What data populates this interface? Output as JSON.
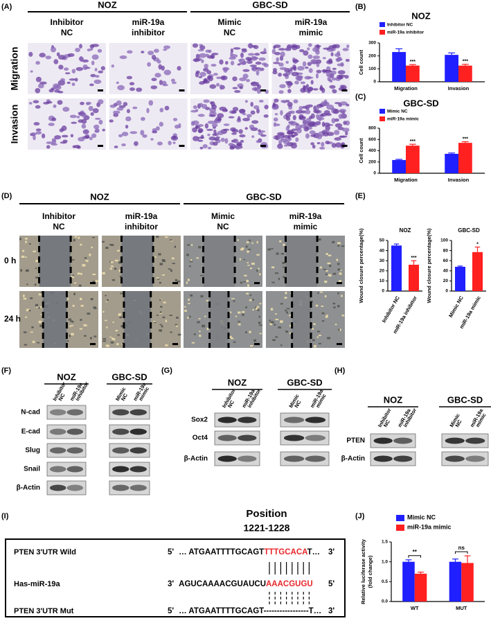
{
  "migration_invasion": {
    "label": "(A)",
    "groups": [
      {
        "name": "NOZ",
        "columns": [
          [
            "Inhibitor",
            "NC"
          ],
          [
            "miR-19a",
            "inhibitor"
          ]
        ]
      },
      {
        "name": "GBC-SD",
        "columns": [
          [
            "Mimic",
            "NC"
          ],
          [
            "miR-19a",
            "mimic"
          ]
        ]
      }
    ],
    "rows": [
      "Migration",
      "Invasion"
    ]
  },
  "wound_healing": {
    "label": "(D)",
    "groups": [
      {
        "name": "NOZ",
        "columns": [
          [
            "Inhibitor",
            "NC"
          ],
          [
            "miR-19a",
            "inhibitor"
          ]
        ]
      },
      {
        "name": "GBC-SD",
        "columns": [
          [
            "Mimic",
            "NC"
          ],
          [
            "miR-19a",
            "mimic"
          ]
        ]
      }
    ],
    "rows": [
      "0 h",
      "24 h"
    ]
  },
  "western_emt": {
    "label": "(F)",
    "groups": [
      {
        "name": "NOZ",
        "lanes": [
          [
            "Inhibitor",
            "NC"
          ],
          [
            "miR-19a",
            "inhibitor"
          ]
        ]
      },
      {
        "name": "GBC-SD",
        "lanes": [
          [
            "Mimic",
            "NC"
          ],
          [
            "miR-19a",
            "mimic"
          ]
        ]
      }
    ],
    "proteins": [
      "N-cad",
      "E-cad",
      "Slug",
      "Snail",
      "β-Actin"
    ]
  },
  "western_stem": {
    "label": "(G)",
    "groups": [
      {
        "name": "NOZ",
        "lanes": [
          [
            "Inhibitor",
            "NC"
          ],
          [
            "miR-19a",
            "inhibitor"
          ]
        ]
      },
      {
        "name": "GBC-SD",
        "lanes": [
          [
            "Mimic",
            "NC"
          ],
          [
            "miR-19a",
            "mimic"
          ]
        ]
      }
    ],
    "proteins": [
      "Sox2",
      "Oct4",
      "β-Actin"
    ]
  },
  "western_pten": {
    "label": "(H)",
    "groups": [
      {
        "name": "NOZ",
        "lanes": [
          [
            "Inhibitor",
            "NC"
          ],
          [
            "miR-19a",
            "inhibitor"
          ]
        ]
      },
      {
        "name": "GBC-SD",
        "lanes": [
          [
            "Mimic",
            "NC"
          ],
          [
            "miR-19a",
            "mimic"
          ]
        ]
      }
    ],
    "proteins": [
      "PTEN",
      "β-Actin"
    ]
  },
  "binding_site": {
    "label": "(I)",
    "position_title": "Position",
    "position_range": "1221-1228",
    "highlight_color": "#e8262a",
    "rows": [
      {
        "name": "PTEN 3'UTR Wild",
        "segments": [
          "5'",
          "… ATGAATTTTGCAGT",
          "TTTGCACA",
          "T…",
          "3'"
        ],
        "highlight": 2
      },
      {
        "name": "Has-miR-19a",
        "segments": [
          "3'",
          "AGUCAAAACGUAUCU",
          "AAACGUGU",
          "5'"
        ],
        "highlight": 2
      },
      {
        "name": "PTEN 3'UTR Mut",
        "segments": [
          "5'",
          "… ATGAATTTTGCAGT-----------------T…",
          "3'"
        ]
      }
    ]
  },
  "chart_data": [
    {
      "panel": "(B)",
      "type": "bar",
      "title": "NOZ",
      "ylabel": "Cell count",
      "categories": [
        "Migration",
        "Invasion"
      ],
      "series": [
        {
          "name": "Inhibitor NC",
          "color": "#1f1fff",
          "values": [
            230,
            208
          ],
          "errors": [
            25,
            15
          ]
        },
        {
          "name": "miR-19a inhibitor",
          "color": "#ff2020",
          "values": [
            125,
            125
          ],
          "errors": [
            8,
            10
          ],
          "significance": [
            "***",
            "***"
          ]
        }
      ],
      "ylim": [
        0,
        300
      ],
      "yticks": [
        0,
        100,
        200,
        300
      ]
    },
    {
      "panel": "(C)",
      "type": "bar",
      "title": "GBC-SD",
      "ylabel": "Cell count",
      "categories": [
        "Migration",
        "Invasion"
      ],
      "series": [
        {
          "name": "Mimic NC",
          "color": "#1f1fff",
          "values": [
            235,
            345
          ],
          "errors": [
            12,
            15
          ]
        },
        {
          "name": "miR-19a mimic",
          "color": "#ff2020",
          "values": [
            490,
            540
          ],
          "errors": [
            25,
            20
          ],
          "significance": [
            "***",
            "***"
          ]
        }
      ],
      "ylim": [
        0,
        800
      ],
      "yticks": [
        0,
        200,
        400,
        600,
        800
      ]
    },
    {
      "panel": "(E)",
      "type": "bar",
      "title": "NOZ",
      "ylabel": "Wound closure percentage(%)",
      "categories": [
        "Inhibitor NC",
        "miR-19a inhibitor"
      ],
      "values": [
        45,
        26
      ],
      "errors": [
        1.5,
        4
      ],
      "colors": [
        "#1f1fff",
        "#ff2020"
      ],
      "significance": [
        null,
        "***"
      ],
      "ylim": [
        0,
        50
      ],
      "yticks": [
        0,
        10,
        20,
        30,
        40,
        50
      ]
    },
    {
      "type": "bar",
      "title": "GBC-SD",
      "ylabel": "Wound closure percentage(%)",
      "categories": [
        "Mimic NC",
        "miR-19a mimic"
      ],
      "values": [
        48,
        77
      ],
      "errors": [
        1.5,
        10
      ],
      "colors": [
        "#1f1fff",
        "#ff2020"
      ],
      "significance": [
        null,
        "*"
      ],
      "ylim": [
        0,
        100
      ],
      "yticks": [
        0,
        20,
        40,
        60,
        80,
        100
      ]
    },
    {
      "panel": "(J)",
      "type": "bar",
      "ylabel": [
        "Relative luciferase activity",
        "(fold change)"
      ],
      "categories": [
        "WT",
        "MUT"
      ],
      "series": [
        {
          "name": "Mimic NC",
          "color": "#1f1fff",
          "values": [
            1.0,
            1.0
          ],
          "errors": [
            0.05,
            0.07
          ]
        },
        {
          "name": "miR-19a mimic",
          "color": "#ff2020",
          "values": [
            0.7,
            0.97
          ],
          "errors": [
            0.04,
            0.18
          ]
        }
      ],
      "significance": [
        "**",
        "ns"
      ],
      "ylim": [
        0,
        1.5
      ],
      "yticks": [
        {
          "value": 0,
          "label": "0.0"
        },
        {
          "value": 0.5,
          "label": "0.5"
        },
        {
          "value": 1,
          "label": "1.0"
        },
        {
          "value": 1.5,
          "label": "1.5"
        }
      ]
    }
  ]
}
